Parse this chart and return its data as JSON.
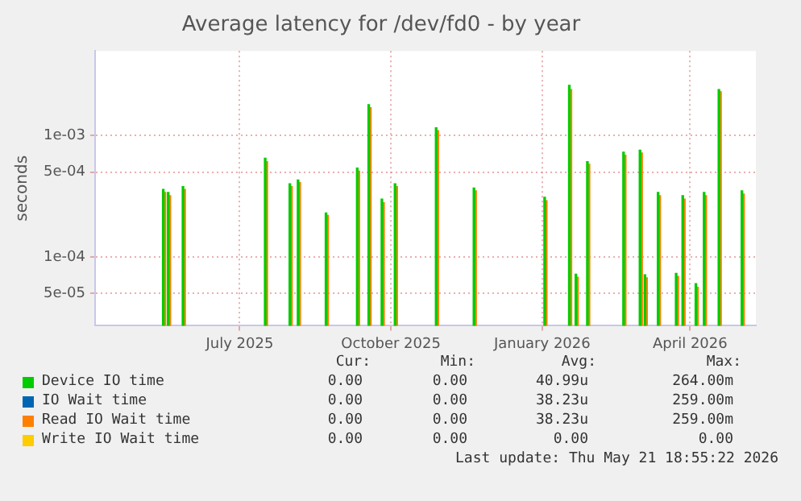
{
  "chart_data": {
    "type": "bar",
    "title": "Average latency for /dev/fd0 - by year",
    "ylabel": "seconds",
    "log": "y",
    "x": [
      "2025-05-16",
      "2025-05-19",
      "2025-05-28",
      "2025-07-17",
      "2025-08-01",
      "2025-08-06",
      "2025-08-23",
      "2025-09-11",
      "2025-09-18",
      "2025-09-26",
      "2025-10-04",
      "2025-10-29",
      "2025-11-21",
      "2026-01-03",
      "2026-01-18",
      "2026-01-22",
      "2026-01-29",
      "2026-02-20",
      "2026-03-02",
      "2026-03-05",
      "2026-03-13",
      "2026-03-24",
      "2026-03-28",
      "2026-04-05",
      "2026-04-10",
      "2026-04-19",
      "2026-05-03"
    ],
    "series": [
      {
        "name": "Device IO time",
        "color": "#00cc00",
        "values": [
          0.00036,
          0.00034,
          0.00038,
          0.00065,
          0.0004,
          0.00043,
          0.00023,
          0.00054,
          0.0018,
          0.0003,
          0.0004,
          0.00116,
          0.00037,
          0.00031,
          0.0026,
          7.2e-05,
          0.00061,
          0.00073,
          0.00076,
          7.1e-05,
          0.00034,
          7.3e-05,
          0.00032,
          6e-05,
          0.00034,
          0.0024,
          0.00035
        ]
      },
      {
        "name": "IO Wait time",
        "color": "#0066b3",
        "values": [
          null,
          null,
          null,
          null,
          null,
          null,
          null,
          null,
          null,
          null,
          null,
          null,
          null,
          null,
          null,
          null,
          null,
          null,
          null,
          null,
          null,
          null,
          null,
          null,
          null,
          null,
          null
        ]
      },
      {
        "name": "Read IO Wait time",
        "color": "#ff8000",
        "values": [
          0.00034,
          0.00032,
          0.00036,
          0.00061,
          0.00038,
          0.00041,
          0.00022,
          0.00051,
          0.0017,
          0.00028,
          0.00038,
          0.0011,
          0.00035,
          0.00029,
          0.0024,
          6.8e-05,
          0.00058,
          0.00069,
          0.00072,
          6.7e-05,
          0.00032,
          6.9e-05,
          0.0003,
          5.6e-05,
          0.00032,
          0.0023,
          0.00033
        ]
      },
      {
        "name": "Write IO Wait time",
        "color": "#ffcc00",
        "values": [
          null,
          null,
          null,
          null,
          null,
          null,
          null,
          null,
          null,
          null,
          null,
          null,
          null,
          null,
          null,
          null,
          null,
          null,
          null,
          null,
          null,
          null,
          null,
          null,
          null,
          null,
          null
        ]
      }
    ],
    "xlim": [
      "2025-04-04",
      "2026-05-11"
    ],
    "xticks": [
      {
        "value": "2025-07-01",
        "label": "July 2025"
      },
      {
        "value": "2025-10-01",
        "label": "October 2025"
      },
      {
        "value": "2026-01-01",
        "label": "January 2026"
      },
      {
        "value": "2026-04-01",
        "label": "April 2026"
      }
    ],
    "ylim": [
      2.7e-05,
      0.005
    ],
    "yticks": [
      {
        "value": 5e-05,
        "label": "5e-05"
      },
      {
        "value": 0.0001,
        "label": "1e-04"
      },
      {
        "value": 0.0005,
        "label": "5e-04"
      },
      {
        "value": 0.001,
        "label": "1e-03"
      }
    ],
    "grid": true,
    "legend": "bottom",
    "annotations": [
      "Cur:",
      "Min:",
      "Avg:",
      "Max:",
      "0.00",
      "0.00",
      "40.99u",
      "264.00m",
      "0.00",
      "0.00",
      "38.23u",
      "259.00m",
      "0.00",
      "0.00",
      "38.23u",
      "259.00m",
      "0.00",
      "0.00",
      "0.00",
      "0.00",
      "Last update: Thu May 21 18:55:22 2026"
    ]
  }
}
